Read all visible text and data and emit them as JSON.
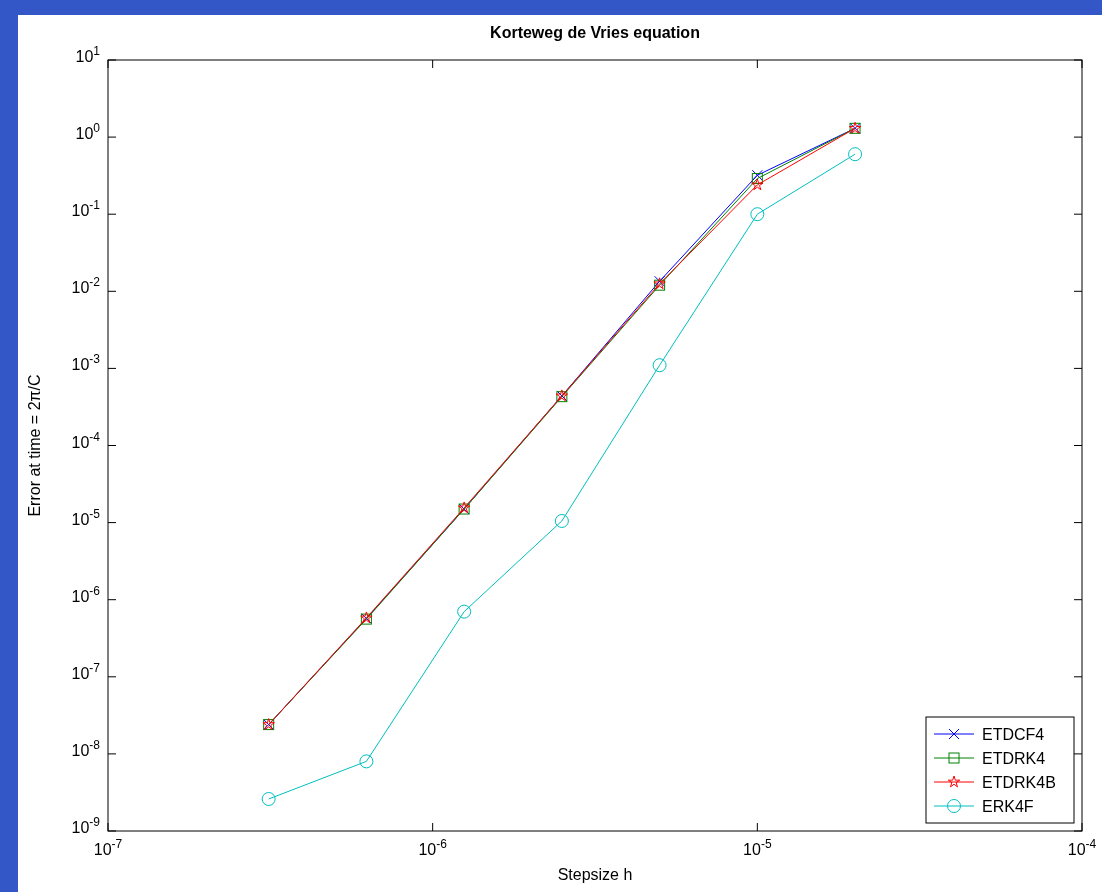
{
  "chart_data": {
    "type": "line",
    "title": "Korteweg de Vries equation",
    "xlabel": "Stepsize  h",
    "ylabel": "Error at time = 2π/C",
    "log": "xy",
    "grid": false,
    "legend": "bottom right",
    "xlim": [
      1e-07,
      0.0001
    ],
    "xticks": [
      {
        "value": 1e-07,
        "label": "10$^{-7}$"
      },
      {
        "value": 1e-06,
        "label": "10$^{-6}$"
      },
      {
        "value": 1e-05,
        "label": "10$^{-5}$"
      },
      {
        "value": 0.0001,
        "label": "10$^{-4}$"
      }
    ],
    "ylim": [
      1e-09,
      10
    ],
    "yticks": [
      {
        "value": 1e-09,
        "label": "10$^{-9}$"
      },
      {
        "value": 1e-08,
        "label": "10$^{-8}$"
      },
      {
        "value": 1e-07,
        "label": "10$^{-7}$"
      },
      {
        "value": 1e-06,
        "label": "10$^{-6}$"
      },
      {
        "value": 1e-05,
        "label": "10$^{-5}$"
      },
      {
        "value": 0.0001,
        "label": "10$^{-4}$"
      },
      {
        "value": 0.001,
        "label": "10$^{-3}$"
      },
      {
        "value": 0.01,
        "label": "10$^{-2}$"
      },
      {
        "value": 0.1,
        "label": "10$^{-1}$"
      },
      {
        "value": 1,
        "label": "10$^{0}$"
      },
      {
        "value": 10,
        "label": "10$^{1}$"
      }
    ],
    "x": [
      3.125e-07,
      6.25e-07,
      1.25e-06,
      2.5e-06,
      5e-06,
      1e-05,
      2e-05
    ],
    "series": [
      {
        "name": "ETDCF4",
        "color": "#0000ff",
        "marker": "cross",
        "values": [
          2.4e-08,
          5.7e-07,
          1.5e-05,
          0.00044,
          0.0135,
          0.32,
          1.3
        ]
      },
      {
        "name": "ETDRK4",
        "color": "#008000",
        "marker": "square",
        "values": [
          2.4e-08,
          5.6e-07,
          1.5e-05,
          0.00043,
          0.012,
          0.29,
          1.3
        ]
      },
      {
        "name": "ETDRK4B",
        "color": "#ff0000",
        "marker": "star",
        "values": [
          2.4e-08,
          5.8e-07,
          1.55e-05,
          0.00044,
          0.0125,
          0.24,
          1.3
        ]
      },
      {
        "name": "ERK4F",
        "color": "#00bfbf",
        "marker": "circle",
        "values": [
          2.6e-09,
          8e-09,
          7e-07,
          1.05e-05,
          0.0011,
          0.1,
          0.6
        ]
      }
    ]
  }
}
